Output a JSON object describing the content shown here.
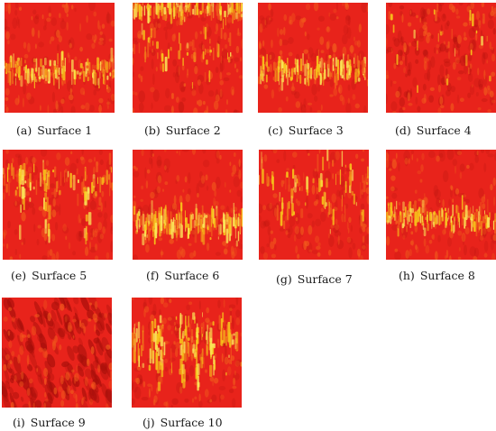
{
  "figure": {
    "panels": [
      {
        "label": "(a)",
        "name": "Surface 1",
        "pattern": "band-middle"
      },
      {
        "label": "(b)",
        "name": "Surface 2",
        "pattern": "speckle-top"
      },
      {
        "label": "(c)",
        "name": "Surface 3",
        "pattern": "band-middle"
      },
      {
        "label": "(d)",
        "name": "Surface 4",
        "pattern": "dark-speckle"
      },
      {
        "label": "(e)",
        "name": "Surface 5",
        "pattern": "sparse-streaks"
      },
      {
        "label": "(f)",
        "name": "Surface 6",
        "pattern": "bright-band-lower"
      },
      {
        "label": "(g)",
        "name": "Surface 7",
        "pattern": "dense-speckle"
      },
      {
        "label": "(h)",
        "name": "Surface 8",
        "pattern": "band-middle"
      },
      {
        "label": "(i)",
        "name": "Surface 9",
        "pattern": "dark-grid"
      },
      {
        "label": "(j)",
        "name": "Surface 10",
        "pattern": "vertical-streaks"
      }
    ],
    "colors": {
      "base": "#e8231b",
      "dark": "#a60f0a",
      "warm": "#f15a1c",
      "bright": "#f7c51a",
      "hot": "#fbe85a"
    }
  }
}
